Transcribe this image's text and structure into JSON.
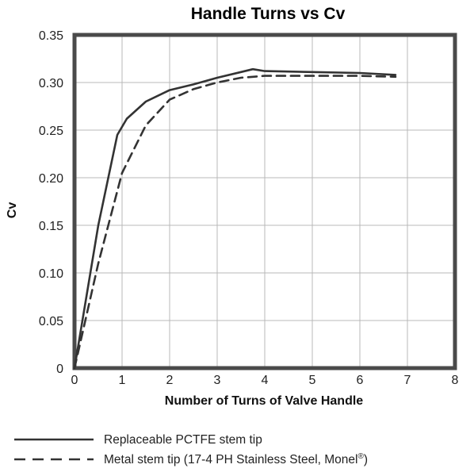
{
  "chart_data": {
    "type": "line",
    "title": "Handle Turns vs Cv",
    "xlabel": "Number of Turns of Valve Handle",
    "ylabel": "Cv",
    "xlim": [
      0,
      8
    ],
    "ylim": [
      0,
      0.35
    ],
    "x_ticks": [
      "0",
      "1",
      "2",
      "3",
      "4",
      "5",
      "6",
      "7",
      "8"
    ],
    "y_ticks": [
      "0",
      "0.05",
      "0.10",
      "0.15",
      "0.20",
      "0.25",
      "0.30",
      "0.35"
    ],
    "grid": true,
    "legend_position": "bottom",
    "series": [
      {
        "name": "Replaceable PCTFE stem tip",
        "style": "solid",
        "x": [
          0,
          0.5,
          0.9,
          1.1,
          1.5,
          2,
          2.5,
          3,
          3.5,
          3.75,
          4,
          5,
          6,
          6.75
        ],
        "y": [
          0,
          0.15,
          0.245,
          0.262,
          0.28,
          0.292,
          0.298,
          0.305,
          0.311,
          0.314,
          0.312,
          0.311,
          0.31,
          0.308
        ]
      },
      {
        "name": "Metal stem tip (17-4 PH Stainless Steel, Monel",
        "name_suffix": "®",
        "suffix_closing": ")",
        "style": "dashed",
        "x": [
          0,
          0.5,
          1,
          1.5,
          2,
          2.5,
          3,
          3.5,
          4,
          5,
          6,
          6.75
        ],
        "y": [
          0,
          0.11,
          0.205,
          0.255,
          0.282,
          0.293,
          0.3,
          0.305,
          0.307,
          0.307,
          0.307,
          0.306
        ]
      }
    ]
  }
}
